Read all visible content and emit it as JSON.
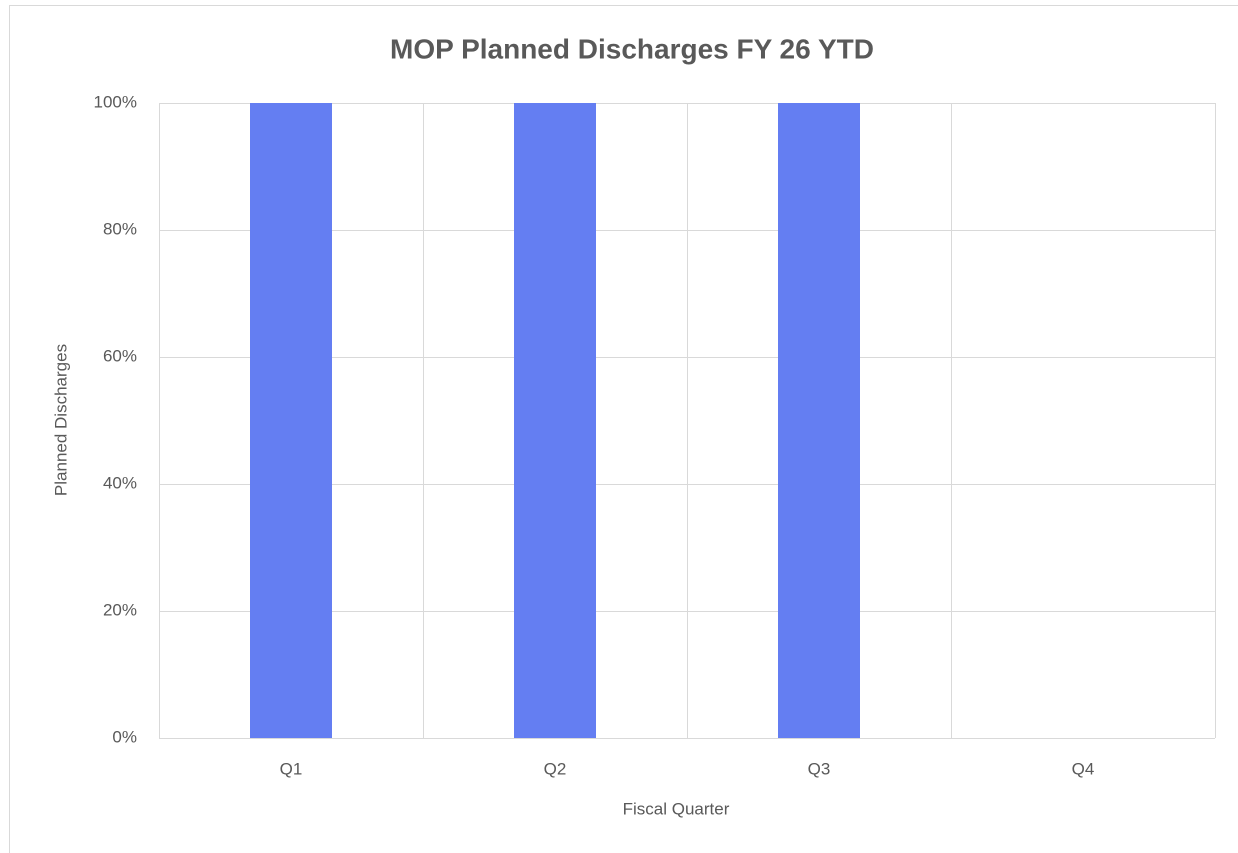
{
  "chart_data": {
    "type": "bar",
    "title": "MOP Planned Discharges FY 26 YTD",
    "x_label": "Fiscal Quarter",
    "y_label": "Planned Discharges",
    "categories": [
      "Q1",
      "Q2",
      "Q3",
      "Q4"
    ],
    "values": [
      100,
      100,
      100,
      null
    ],
    "color": "#647ef2",
    "ylim": [
      0,
      100
    ],
    "yticks": [
      {
        "value": 0,
        "label": "0%"
      },
      {
        "value": 20,
        "label": "20%"
      },
      {
        "value": 40,
        "label": "40%"
      },
      {
        "value": 60,
        "label": "60%"
      },
      {
        "value": 80,
        "label": "80%"
      },
      {
        "value": 100,
        "label": "100%"
      }
    ],
    "grid": true
  }
}
